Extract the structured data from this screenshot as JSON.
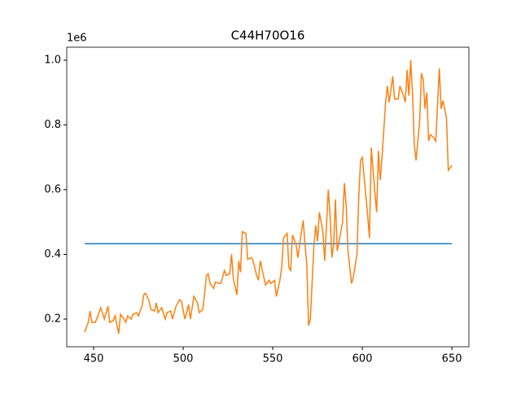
{
  "chart_data": {
    "type": "line",
    "title": "C44H70O16",
    "offset_text": "1e6",
    "xlim": [
      435,
      659.5
    ],
    "ylim": [
      0.1145,
      1.04
    ],
    "xticks": [
      450,
      500,
      550,
      600,
      650
    ],
    "yticks": [
      0.2,
      0.4,
      0.6,
      0.8,
      {
        "value": 1.0,
        "label": "1.0"
      }
    ],
    "series": [
      {
        "color": "#1f77b4",
        "x": [
          445,
          650
        ],
        "values": [
          0.433,
          0.433
        ]
      },
      {
        "color": "#ff7f0e",
        "x": [
          445,
          447,
          448,
          449,
          451,
          453,
          454,
          456,
          458,
          459,
          461,
          462,
          464,
          465,
          467,
          468,
          469,
          471,
          472,
          474,
          475,
          477,
          478,
          479,
          481,
          482,
          484,
          485,
          486,
          488,
          490,
          491,
          493,
          494,
          496,
          498,
          499,
          501,
          503,
          504,
          506,
          508,
          509,
          511,
          513,
          514,
          515,
          517,
          518,
          520,
          521,
          523,
          524,
          526,
          527,
          528,
          530,
          531,
          532,
          533,
          535,
          536,
          538,
          539,
          541,
          542,
          543,
          545,
          546,
          548,
          549,
          551,
          552,
          554,
          555,
          556,
          558,
          559,
          560,
          561,
          563,
          564,
          566,
          567,
          568,
          569,
          570,
          571,
          573,
          574,
          575,
          576,
          578,
          579,
          580,
          581,
          582,
          583,
          584,
          585,
          586,
          588,
          589,
          590,
          591,
          592,
          594,
          595,
          597,
          598,
          599,
          600,
          602,
          603,
          604,
          605,
          607,
          608,
          609,
          610,
          611,
          613,
          614,
          615,
          617,
          618,
          620,
          621,
          623,
          624,
          625,
          626,
          627,
          628,
          629,
          630,
          632,
          633,
          634,
          635,
          636,
          637,
          638,
          640,
          641,
          643,
          644,
          645,
          647,
          648,
          650
        ],
        "values": [
          0.16,
          0.19,
          0.225,
          0.19,
          0.19,
          0.22,
          0.235,
          0.2,
          0.24,
          0.19,
          0.195,
          0.21,
          0.155,
          0.215,
          0.2,
          0.19,
          0.21,
          0.2,
          0.215,
          0.22,
          0.21,
          0.24,
          0.275,
          0.28,
          0.255,
          0.23,
          0.225,
          0.25,
          0.22,
          0.235,
          0.2,
          0.22,
          0.225,
          0.2,
          0.24,
          0.26,
          0.255,
          0.2,
          0.245,
          0.2,
          0.27,
          0.25,
          0.22,
          0.23,
          0.335,
          0.34,
          0.31,
          0.295,
          0.315,
          0.31,
          0.31,
          0.35,
          0.335,
          0.34,
          0.4,
          0.325,
          0.275,
          0.38,
          0.345,
          0.47,
          0.465,
          0.385,
          0.39,
          0.38,
          0.335,
          0.32,
          0.38,
          0.33,
          0.305,
          0.32,
          0.31,
          0.32,
          0.27,
          0.32,
          0.36,
          0.45,
          0.465,
          0.36,
          0.35,
          0.46,
          0.43,
          0.39,
          0.47,
          0.505,
          0.43,
          0.37,
          0.18,
          0.2,
          0.43,
          0.49,
          0.44,
          0.53,
          0.47,
          0.38,
          0.49,
          0.6,
          0.52,
          0.39,
          0.43,
          0.57,
          0.41,
          0.47,
          0.5,
          0.62,
          0.55,
          0.41,
          0.31,
          0.33,
          0.4,
          0.575,
          0.69,
          0.7,
          0.58,
          0.52,
          0.45,
          0.73,
          0.59,
          0.53,
          0.72,
          0.63,
          0.7,
          0.87,
          0.92,
          0.87,
          0.95,
          0.88,
          0.88,
          0.92,
          0.89,
          0.87,
          0.97,
          0.89,
          1.0,
          0.9,
          0.74,
          0.69,
          0.81,
          0.96,
          0.94,
          0.85,
          0.9,
          0.75,
          0.77,
          0.76,
          0.75,
          0.975,
          0.85,
          0.875,
          0.82,
          0.66,
          0.675
        ]
      }
    ]
  }
}
